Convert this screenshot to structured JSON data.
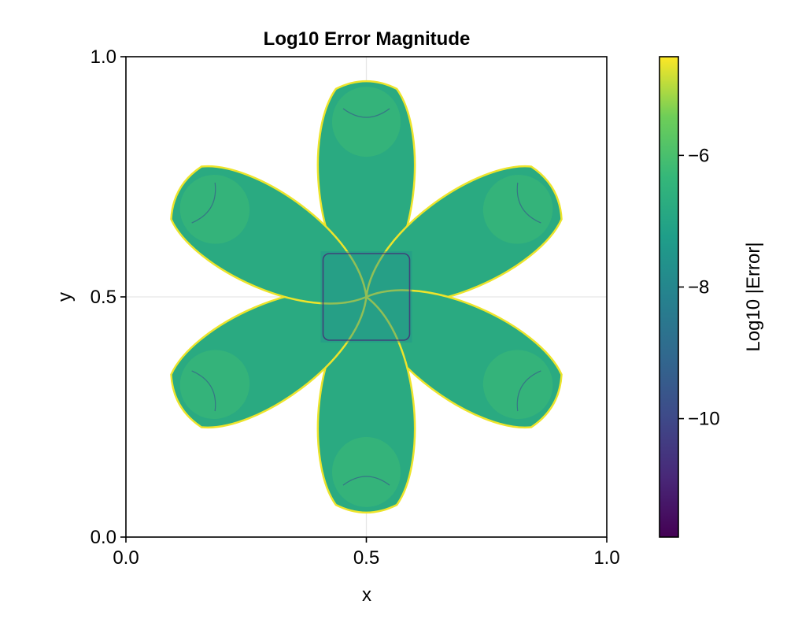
{
  "chart_data": {
    "type": "heatmap",
    "title": "Log10 Error Magnitude",
    "xlabel": "x",
    "ylabel": "y",
    "xlim": [
      0.0,
      1.0
    ],
    "ylim": [
      0.0,
      1.0
    ],
    "x_ticks": [
      {
        "value": 0.0,
        "label": "0.0"
      },
      {
        "value": 0.5,
        "label": "0.5"
      },
      {
        "value": 1.0,
        "label": "1.0"
      }
    ],
    "y_ticks": [
      {
        "value": 0.0,
        "label": "0.0"
      },
      {
        "value": 0.5,
        "label": "0.5"
      },
      {
        "value": 1.0,
        "label": "1.0"
      }
    ],
    "grid": true,
    "colormap": "viridis",
    "colorbar": {
      "label": "Log10 |Error|",
      "range": [
        -11.8,
        -4.5
      ],
      "ticks": [
        {
          "value": -6,
          "label": "−6"
        },
        {
          "value": -8,
          "label": "−8"
        },
        {
          "value": -10,
          "label": "−10"
        }
      ]
    },
    "shape": {
      "kind": "six-petal flower",
      "center": [
        0.5,
        0.5
      ],
      "petals": 6,
      "petal_angles_deg": [
        90,
        30,
        -30,
        -90,
        -150,
        150
      ],
      "petal_tip_radius": 0.455,
      "petal_half_width": 0.115,
      "typical_value": -6.8,
      "edge_value": -4.6,
      "center_value": -7.6
    }
  }
}
